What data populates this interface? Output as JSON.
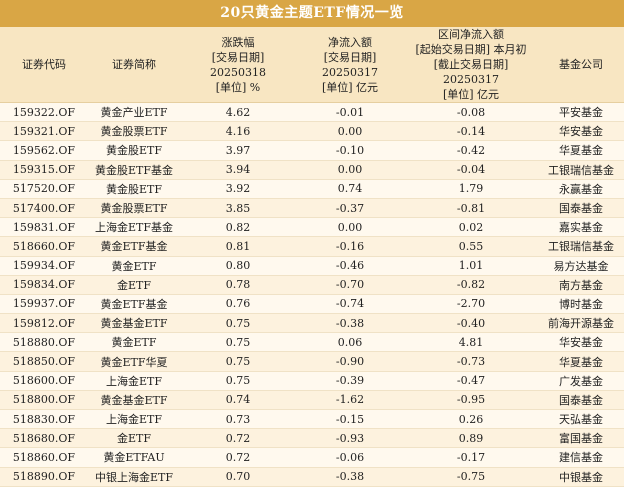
{
  "title": "20只黄金主题ETF情况一览",
  "headers": {
    "code": [
      "证券代码"
    ],
    "name": [
      "证券简称"
    ],
    "change": [
      "涨跌幅",
      "[交易日期] 20250318",
      "[单位] %"
    ],
    "net_inflow": [
      "净流入额",
      "[交易日期] 20250317",
      "[单位] 亿元"
    ],
    "range_inflow": [
      "区间净流入额",
      "[起始交易日期] 本月初",
      "[截止交易日期] 20250317",
      "[单位] 亿元"
    ],
    "company": [
      "基金公司"
    ]
  },
  "rows": [
    {
      "code": "159322.OF",
      "name": "黄金产业ETF",
      "change": "4.62",
      "net_inflow": "-0.01",
      "range_inflow": "-0.08",
      "company": "平安基金"
    },
    {
      "code": "159321.OF",
      "name": "黄金股票ETF",
      "change": "4.16",
      "net_inflow": "0.00",
      "range_inflow": "-0.14",
      "company": "华安基金"
    },
    {
      "code": "159562.OF",
      "name": "黄金股ETF",
      "change": "3.97",
      "net_inflow": "-0.10",
      "range_inflow": "-0.42",
      "company": "华夏基金"
    },
    {
      "code": "159315.OF",
      "name": "黄金股ETF基金",
      "change": "3.94",
      "net_inflow": "0.00",
      "range_inflow": "-0.04",
      "company": "工银瑞信基金"
    },
    {
      "code": "517520.OF",
      "name": "黄金股ETF",
      "change": "3.92",
      "net_inflow": "0.74",
      "range_inflow": "1.79",
      "company": "永赢基金"
    },
    {
      "code": "517400.OF",
      "name": "黄金股票ETF",
      "change": "3.85",
      "net_inflow": "-0.37",
      "range_inflow": "-0.81",
      "company": "国泰基金"
    },
    {
      "code": "159831.OF",
      "name": "上海金ETF基金",
      "change": "0.82",
      "net_inflow": "0.00",
      "range_inflow": "0.02",
      "company": "嘉实基金"
    },
    {
      "code": "518660.OF",
      "name": "黄金ETF基金",
      "change": "0.81",
      "net_inflow": "-0.16",
      "range_inflow": "0.55",
      "company": "工银瑞信基金"
    },
    {
      "code": "159934.OF",
      "name": "黄金ETF",
      "change": "0.80",
      "net_inflow": "-0.46",
      "range_inflow": "1.01",
      "company": "易方达基金"
    },
    {
      "code": "159834.OF",
      "name": "金ETF",
      "change": "0.78",
      "net_inflow": "-0.70",
      "range_inflow": "-0.82",
      "company": "南方基金"
    },
    {
      "code": "159937.OF",
      "name": "黄金ETF基金",
      "change": "0.76",
      "net_inflow": "-0.74",
      "range_inflow": "-2.70",
      "company": "博时基金"
    },
    {
      "code": "159812.OF",
      "name": "黄金基金ETF",
      "change": "0.75",
      "net_inflow": "-0.38",
      "range_inflow": "-0.40",
      "company": "前海开源基金"
    },
    {
      "code": "518880.OF",
      "name": "黄金ETF",
      "change": "0.75",
      "net_inflow": "0.06",
      "range_inflow": "4.81",
      "company": "华安基金"
    },
    {
      "code": "518850.OF",
      "name": "黄金ETF华夏",
      "change": "0.75",
      "net_inflow": "-0.90",
      "range_inflow": "-0.73",
      "company": "华夏基金"
    },
    {
      "code": "518600.OF",
      "name": "上海金ETF",
      "change": "0.75",
      "net_inflow": "-0.39",
      "range_inflow": "-0.47",
      "company": "广发基金"
    },
    {
      "code": "518800.OF",
      "name": "黄金基金ETF",
      "change": "0.74",
      "net_inflow": "-1.62",
      "range_inflow": "-0.95",
      "company": "国泰基金"
    },
    {
      "code": "518830.OF",
      "name": "上海金ETF",
      "change": "0.73",
      "net_inflow": "-0.15",
      "range_inflow": "0.26",
      "company": "天弘基金"
    },
    {
      "code": "518680.OF",
      "name": "金ETF",
      "change": "0.72",
      "net_inflow": "-0.93",
      "range_inflow": "0.89",
      "company": "富国基金"
    },
    {
      "code": "518860.OF",
      "name": "黄金ETFAU",
      "change": "0.72",
      "net_inflow": "-0.06",
      "range_inflow": "-0.17",
      "company": "建信基金"
    },
    {
      "code": "518890.OF",
      "name": "中银上海金ETF",
      "change": "0.70",
      "net_inflow": "-0.38",
      "range_inflow": "-0.75",
      "company": "中银基金"
    }
  ]
}
